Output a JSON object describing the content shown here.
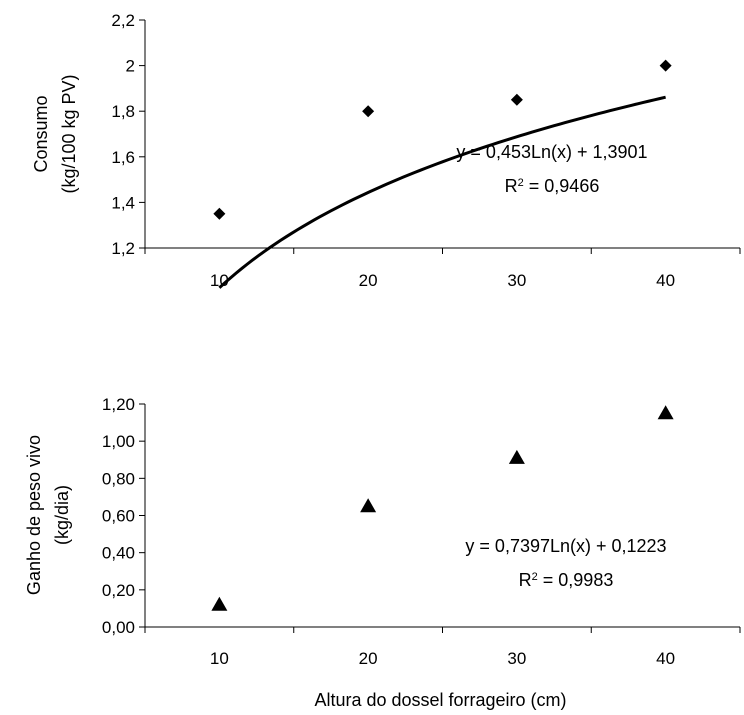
{
  "chart_data": [
    {
      "type": "scatter",
      "ylabel_lines": [
        "Consumo",
        "(kg/100 kg PV)"
      ],
      "xlabel": "",
      "xlim": [
        5,
        45
      ],
      "ylim": [
        1.2,
        2.2
      ],
      "x_ticks": [
        10,
        20,
        30,
        40
      ],
      "x_tick_labels": [
        "10",
        "20",
        "30",
        "40"
      ],
      "y_ticks": [
        1.2,
        1.4,
        1.6,
        1.8,
        2.0,
        2.2
      ],
      "y_tick_labels": [
        "1,2",
        "1,4",
        "1,6",
        "1,8",
        "2",
        "2,2"
      ],
      "grid": false,
      "marker": "diamond",
      "points": [
        {
          "x": 10,
          "y": 1.35
        },
        {
          "x": 20,
          "y": 1.8
        },
        {
          "x": 30,
          "y": 1.85
        },
        {
          "x": 40,
          "y": 2.0
        }
      ],
      "trendline": {
        "type": "logarithmic",
        "a": 0.453,
        "b": 1.3901,
        "x_range": [
          10,
          40
        ]
      },
      "equation_text": "y = 0,453Ln(x) + 1,3901",
      "r2_prefix": "R",
      "r2_suffix": " = 0,9466"
    },
    {
      "type": "scatter",
      "ylabel_lines": [
        "Ganho de peso vivo",
        "(kg/dia)"
      ],
      "xlabel": "Altura do dossel forrageiro (cm)",
      "xlim": [
        5,
        45
      ],
      "ylim": [
        0.0,
        1.2
      ],
      "x_ticks": [
        10,
        20,
        30,
        40
      ],
      "x_tick_labels": [
        "10",
        "20",
        "30",
        "40"
      ],
      "y_ticks": [
        0.0,
        0.2,
        0.4,
        0.6,
        0.8,
        1.0,
        1.2
      ],
      "y_tick_labels": [
        "0,00",
        "0,20",
        "0,40",
        "0,60",
        "0,80",
        "1,00",
        "1,20"
      ],
      "grid": false,
      "marker": "triangle",
      "points": [
        {
          "x": 10,
          "y": 0.12
        },
        {
          "x": 20,
          "y": 0.65
        },
        {
          "x": 30,
          "y": 0.91
        },
        {
          "x": 40,
          "y": 1.15
        }
      ],
      "trendline": {
        "type": "logarithmic",
        "a": 0.7397,
        "b": 0.1223,
        "x_range": [
          10,
          40
        ]
      },
      "equation_text": "y = 0,7397Ln(x) + 0,1223",
      "r2_prefix": "R",
      "r2_suffix": " = 0,9983"
    }
  ]
}
